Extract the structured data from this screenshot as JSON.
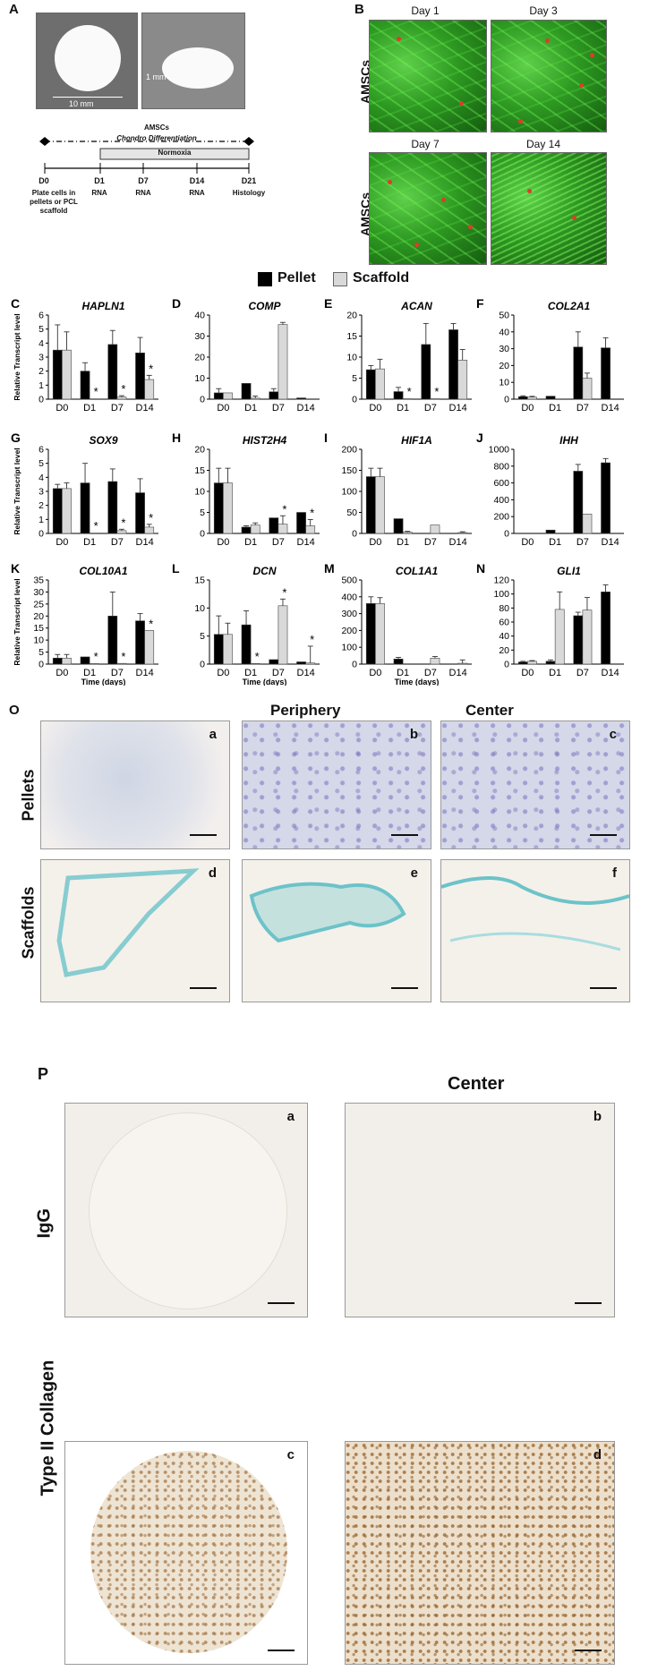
{
  "panel_A": {
    "label": "A",
    "scaffold_width": "10 mm",
    "scaffold_height": "1 mm",
    "timeline": {
      "title1": "AMSCs",
      "title2": "Chondro Differentiation",
      "condition": "Normoxia",
      "days": [
        "D0",
        "D1",
        "D7",
        "D14",
        "D21"
      ],
      "steps": [
        "Plate cells in pellets or PCL scaffold",
        "RNA",
        "RNA",
        "RNA",
        "Histology"
      ]
    }
  },
  "panel_B": {
    "label": "B",
    "row_label": "AMSCs",
    "days": [
      "Day 1",
      "Day 3",
      "Day 7",
      "Day 14"
    ]
  },
  "legend": {
    "pellet": "Pellet",
    "scaffold": "Scaffold",
    "pellet_color": "#000000",
    "scaffold_color": "#d9d9d9"
  },
  "common": {
    "ylabel": "Relative Transcript level",
    "xlabel": "Time (days)",
    "categories": [
      "D0",
      "D1",
      "D7",
      "D14"
    ],
    "significance_marker": "*"
  },
  "chart_data": [
    {
      "panel": "C",
      "title": "HAPLN1",
      "type": "bar",
      "ylim": [
        0,
        6
      ],
      "yticks": [
        0,
        1,
        2,
        3,
        4,
        5,
        6
      ],
      "series": [
        {
          "name": "Pellet",
          "values": [
            3.5,
            2.0,
            3.9,
            3.3
          ],
          "errors": [
            1.8,
            0.6,
            1.0,
            1.1
          ]
        },
        {
          "name": "Scaffold",
          "values": [
            3.5,
            0.0,
            0.15,
            1.4
          ],
          "errors": [
            1.3,
            0,
            0.1,
            0.3
          ]
        }
      ],
      "stars": {
        "scaffold": [
          1,
          2,
          3
        ]
      }
    },
    {
      "panel": "D",
      "title": "COMP",
      "type": "bar",
      "ylim": [
        0,
        40
      ],
      "yticks": [
        0,
        10,
        20,
        30,
        40
      ],
      "series": [
        {
          "name": "Pellet",
          "values": [
            3,
            7.5,
            3.5,
            0.6
          ],
          "errors": [
            2,
            0,
            1.5,
            0
          ]
        },
        {
          "name": "Scaffold",
          "values": [
            3,
            0.5,
            35.5,
            0
          ],
          "errors": [
            0,
            1,
            1,
            0
          ]
        }
      ],
      "stars": {}
    },
    {
      "panel": "E",
      "title": "ACAN",
      "type": "bar",
      "ylim": [
        0,
        20
      ],
      "yticks": [
        0,
        5,
        10,
        15,
        20
      ],
      "series": [
        {
          "name": "Pellet",
          "values": [
            7,
            1.8,
            13,
            16.5
          ],
          "errors": [
            1,
            1,
            5,
            1.5
          ]
        },
        {
          "name": "Scaffold",
          "values": [
            7.2,
            0.1,
            0.1,
            9.3
          ],
          "errors": [
            2.3,
            0,
            0,
            2.5
          ]
        }
      ],
      "stars": {
        "scaffold": [
          1,
          2
        ]
      }
    },
    {
      "panel": "F",
      "title": "COL2A1",
      "type": "bar",
      "ylim": [
        0,
        50
      ],
      "yticks": [
        0,
        10,
        20,
        30,
        40,
        50
      ],
      "series": [
        {
          "name": "Pellet",
          "values": [
            1.5,
            1.8,
            31,
            30.5
          ],
          "errors": [
            0.5,
            0,
            9,
            6
          ]
        },
        {
          "name": "Scaffold",
          "values": [
            1.2,
            0,
            12.5,
            0
          ],
          "errors": [
            0.5,
            0,
            3,
            0
          ]
        }
      ],
      "stars": {}
    },
    {
      "panel": "G",
      "title": "SOX9",
      "type": "bar",
      "ylim": [
        0,
        6
      ],
      "yticks": [
        0,
        1,
        2,
        3,
        4,
        5,
        6
      ],
      "series": [
        {
          "name": "Pellet",
          "values": [
            3.2,
            3.6,
            3.7,
            2.9
          ],
          "errors": [
            0.3,
            1.4,
            0.9,
            1.0
          ]
        },
        {
          "name": "Scaffold",
          "values": [
            3.2,
            0,
            0.2,
            0.45
          ],
          "errors": [
            0.4,
            0,
            0.1,
            0.2
          ]
        }
      ],
      "stars": {
        "scaffold": [
          1,
          2,
          3
        ]
      }
    },
    {
      "panel": "H",
      "title": "HIST2H4",
      "type": "bar",
      "ylim": [
        0,
        20
      ],
      "yticks": [
        0,
        5,
        10,
        15,
        20
      ],
      "series": [
        {
          "name": "Pellet",
          "values": [
            12,
            1.5,
            3.7,
            5
          ],
          "errors": [
            3.5,
            0.3,
            0,
            0
          ]
        },
        {
          "name": "Scaffold",
          "values": [
            12,
            2,
            2.2,
            1.8
          ],
          "errors": [
            3.5,
            0.5,
            2,
            1.5
          ]
        }
      ],
      "stars": {
        "scaffold": [
          2,
          3
        ]
      }
    },
    {
      "panel": "I",
      "title": "HIF1A",
      "type": "bar",
      "ylim": [
        0,
        200
      ],
      "yticks": [
        0,
        50,
        100,
        150,
        200
      ],
      "series": [
        {
          "name": "Pellet",
          "values": [
            135,
            35,
            0,
            0
          ],
          "errors": [
            20,
            0,
            0,
            0
          ]
        },
        {
          "name": "Scaffold",
          "values": [
            135,
            3,
            20,
            2
          ],
          "errors": [
            20,
            2,
            0,
            2
          ]
        }
      ],
      "stars": {}
    },
    {
      "panel": "J",
      "title": "IHH",
      "type": "bar",
      "ylim": [
        0,
        1000
      ],
      "yticks": [
        0,
        200,
        400,
        600,
        800,
        1000
      ],
      "series": [
        {
          "name": "Pellet",
          "values": [
            0,
            40,
            740,
            840
          ],
          "errors": [
            0,
            0,
            80,
            50
          ]
        },
        {
          "name": "Scaffold",
          "values": [
            0,
            0,
            230,
            0
          ],
          "errors": [
            0,
            0,
            0,
            0
          ]
        }
      ],
      "stars": {}
    },
    {
      "panel": "K",
      "title": "COL10A1",
      "type": "bar",
      "ylim": [
        0,
        35
      ],
      "yticks": [
        0,
        5,
        10,
        15,
        20,
        25,
        30,
        35
      ],
      "series": [
        {
          "name": "Pellet",
          "values": [
            2.5,
            3,
            20,
            18
          ],
          "errors": [
            1.5,
            0,
            10,
            3
          ]
        },
        {
          "name": "Scaffold",
          "values": [
            2.5,
            0.2,
            0.3,
            14
          ],
          "errors": [
            1.5,
            0,
            0,
            0
          ]
        }
      ],
      "stars": {
        "scaffold": [
          1,
          2,
          3
        ]
      }
    },
    {
      "panel": "L",
      "title": "DCN",
      "type": "bar",
      "ylim": [
        0,
        15
      ],
      "yticks": [
        0,
        5,
        10,
        15
      ],
      "series": [
        {
          "name": "Pellet",
          "values": [
            5.3,
            7,
            0.8,
            0.4
          ],
          "errors": [
            3.3,
            2.5,
            0,
            0
          ]
        },
        {
          "name": "Scaffold",
          "values": [
            5.3,
            0.1,
            10.4,
            0.2
          ],
          "errors": [
            2,
            0,
            1.2,
            3
          ]
        }
      ],
      "stars": {
        "scaffold": [
          1,
          2,
          3
        ]
      }
    },
    {
      "panel": "M",
      "title": "COL1A1",
      "type": "bar",
      "ylim": [
        0,
        500
      ],
      "yticks": [
        0,
        100,
        200,
        300,
        400,
        500
      ],
      "series": [
        {
          "name": "Pellet",
          "values": [
            360,
            30,
            0,
            0
          ],
          "errors": [
            40,
            10,
            0,
            0
          ]
        },
        {
          "name": "Scaffold",
          "values": [
            360,
            0,
            35,
            5
          ],
          "errors": [
            35,
            0,
            10,
            20
          ]
        }
      ],
      "stars": {}
    },
    {
      "panel": "N",
      "title": "GLI1",
      "type": "bar",
      "ylim": [
        0,
        120
      ],
      "yticks": [
        0,
        20,
        40,
        60,
        80,
        100,
        120
      ],
      "series": [
        {
          "name": "Pellet",
          "values": [
            3,
            4,
            69,
            103
          ],
          "errors": [
            1,
            2,
            5,
            10
          ]
        },
        {
          "name": "Scaffold",
          "values": [
            4,
            78,
            77,
            0
          ],
          "errors": [
            1,
            25,
            18,
            0
          ]
        }
      ],
      "stars": {}
    }
  ],
  "panel_O": {
    "label": "O",
    "col_periphery": "Periphery",
    "col_center": "Center",
    "row_pellets": "Pellets",
    "row_scaffolds": "Scaffolds",
    "letters": [
      "a",
      "b",
      "c",
      "d",
      "e",
      "f"
    ]
  },
  "panel_P": {
    "label": "P",
    "col_center": "Center",
    "row_igg": "IgG",
    "row_col2": "Type II Collagen",
    "letters": [
      "a",
      "b",
      "c",
      "d"
    ]
  }
}
